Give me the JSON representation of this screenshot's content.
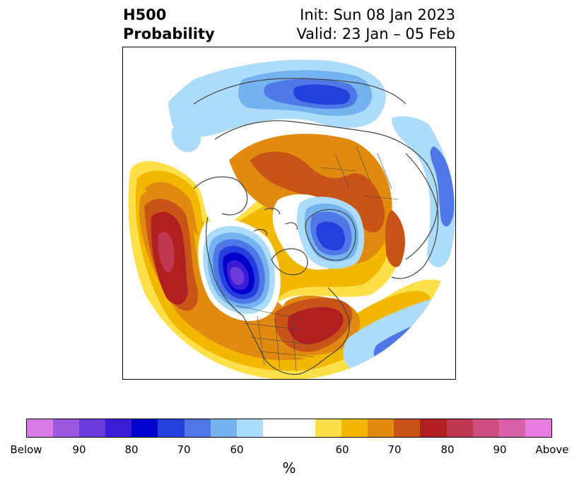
{
  "title": {
    "left_line1": "H500",
    "left_line2": "Probability",
    "right_line1": "Init: Sun 08 Jan 2023",
    "right_line2": "Valid: 23 Jan – 05 Feb"
  },
  "colorbar": {
    "unit": "%",
    "colors": [
      "#d97ce8",
      "#9a58e0",
      "#6b3bd9",
      "#3a1bd6",
      "#0000cc",
      "#2340dd",
      "#4f78e6",
      "#75b2f0",
      "#acdcfa",
      "#ffffff",
      "#ffffff",
      "#fde04a",
      "#f2b800",
      "#e08a10",
      "#c85418",
      "#b02020",
      "#c03850",
      "#cc4f80",
      "#d860a8",
      "#e87ce0"
    ],
    "labels": [
      "Below",
      "90",
      "80",
      "70",
      "60",
      "60",
      "70",
      "80",
      "90",
      "Above"
    ]
  },
  "map": {
    "projection": "north-polar-stereographic",
    "colors": {
      "above_60": "#fde04a",
      "above_65": "#f2b800",
      "above_70": "#e08a10",
      "above_75": "#c85418",
      "above_80": "#b02020",
      "above_85": "#c03850",
      "below_60": "#acdcfa",
      "below_65": "#75b2f0",
      "below_70": "#4f78e6",
      "below_75": "#2340dd",
      "below_80": "#0000cc",
      "below_85": "#3a1bd6",
      "below_90": "#6b3bd9",
      "coastline": "#444444"
    }
  }
}
